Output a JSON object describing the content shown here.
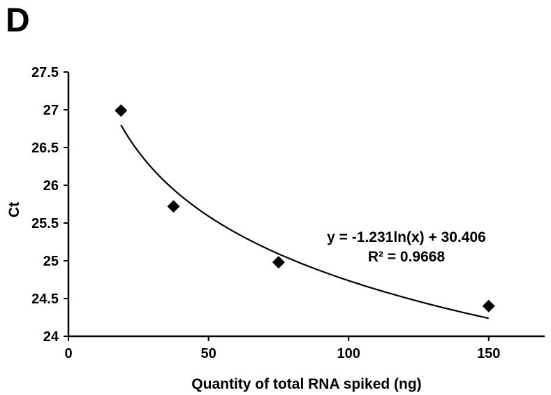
{
  "panel_label": "D",
  "chart_data": {
    "type": "scatter",
    "title": "",
    "xlabel": "Quantity of total RNA spiked (ng)",
    "ylabel": "Ct",
    "xlim": [
      0,
      170
    ],
    "ylim": [
      24,
      27.5
    ],
    "xticks": [
      0,
      50,
      100,
      150
    ],
    "yticks": [
      24,
      24.5,
      25,
      25.5,
      26,
      26.5,
      27,
      27.5
    ],
    "xtick_labels": [
      "0",
      "50",
      "100",
      "150"
    ],
    "ytick_labels": [
      "24",
      "24.5",
      "25",
      "25.5",
      "26",
      "26.5",
      "27",
      "27.5"
    ],
    "grid": false,
    "legend": "none",
    "marker": "diamond",
    "marker_color": "#000000",
    "series": [
      {
        "x": [
          18.75,
          37.5,
          75,
          150
        ],
        "y": [
          26.99,
          25.72,
          24.98,
          24.4
        ]
      }
    ],
    "trendline": {
      "type": "logarithmic",
      "a": -1.231,
      "b": 30.406,
      "x_range": [
        18.75,
        150
      ],
      "equation_label": "y = -1.231ln(x) + 30.406",
      "r2_label": "R² = 0.9668",
      "color": "#000000"
    }
  }
}
